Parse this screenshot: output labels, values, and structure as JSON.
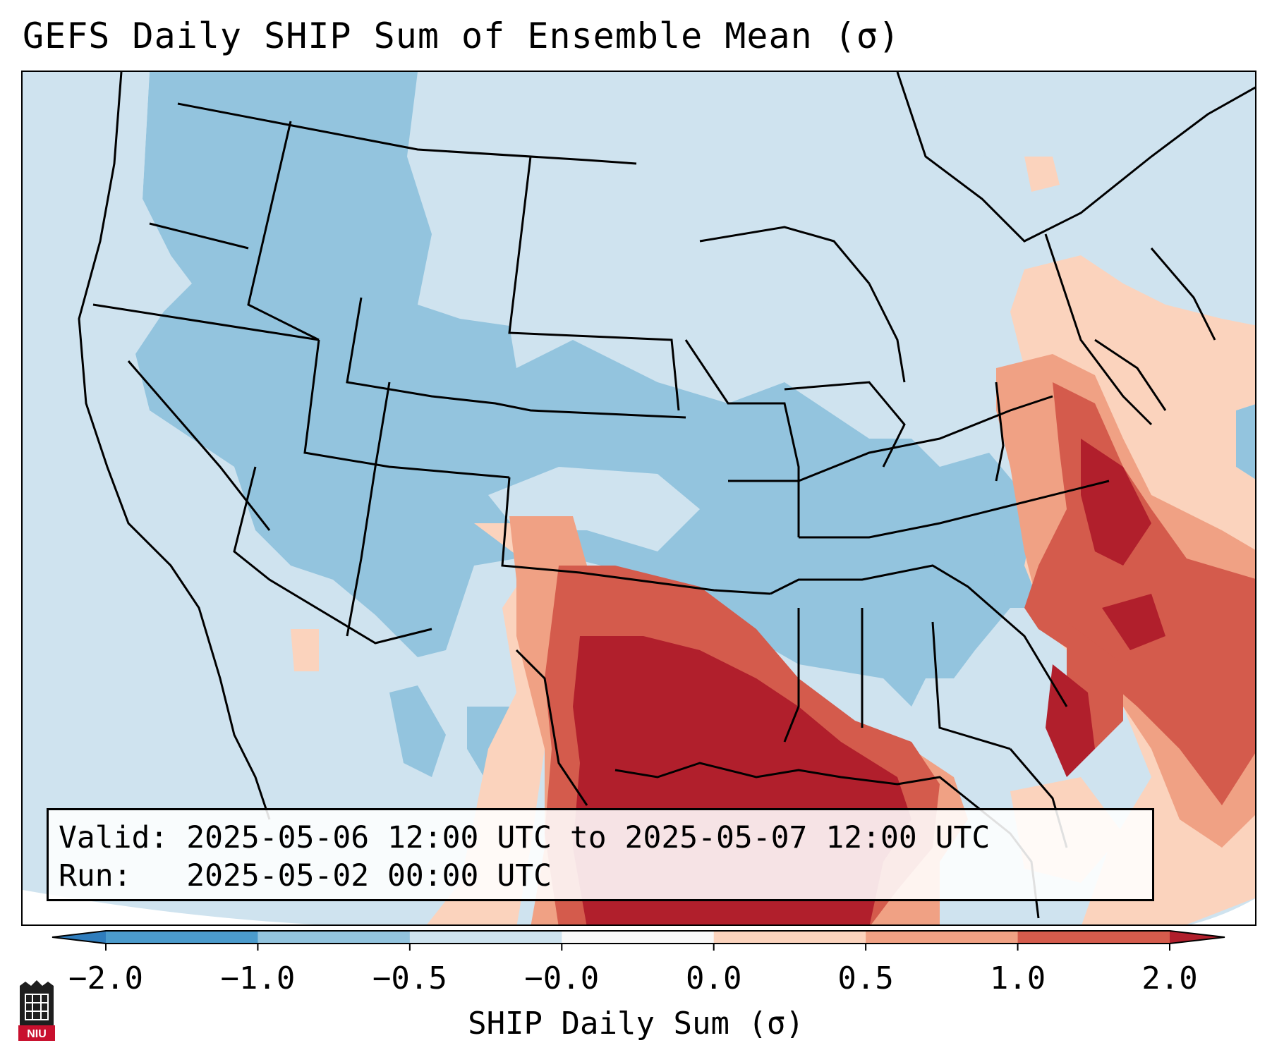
{
  "title": "GEFS Daily SHIP Sum of Ensemble Mean (σ)",
  "info": {
    "valid_label": "Valid:",
    "valid_value": "2025-05-06 12:00 UTC to 2025-05-07 12:00 UTC",
    "run_label": "Run:",
    "run_value": "2025-05-02 00:00 UTC"
  },
  "colorbar": {
    "label": "SHIP Daily Sum (σ)",
    "ticks": [
      "−2.0",
      "−1.0",
      "−0.5",
      "−0.0",
      "0.0",
      "0.5",
      "1.0",
      "2.0"
    ],
    "colors": [
      "#2f7dbd",
      "#4b9bcc",
      "#93c4de",
      "#cde2ee",
      "#f8f8f8",
      "#fbd3bd",
      "#f0a184",
      "#d45b4c",
      "#b11f2c"
    ],
    "extend": "both"
  },
  "map": {
    "region": "Contiguous United States",
    "field": "SHIP daily sum anomaly",
    "max_region": "Texas, Louisiana and Gulf of Mexico",
    "secondary_max": "Mid-Atlantic coast and western Atlantic"
  },
  "logo_text": "NIU"
}
